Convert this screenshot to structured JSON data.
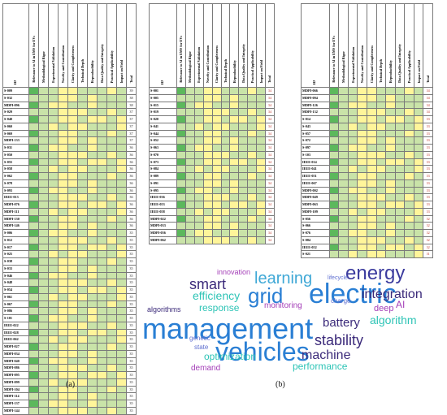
{
  "headers": [
    "Relevance to AI in EMS for EVs",
    "Methodological Rigor",
    "Experimental Validation",
    "Novelty and Contribution",
    "Clarity and Completeness",
    "Technical Depth",
    "Reproducibility",
    "Data Quality and Integrity",
    "Practical Applicability",
    "Impact on Field",
    "Total"
  ],
  "id_header": "ID",
  "table_a": {
    "ids": [
      "S-009",
      "S-032",
      "MDPI-096",
      "S-029",
      "S-040",
      "S-060",
      "S-069",
      "MDPI-133",
      "S-031",
      "S-050",
      "S-055",
      "S-058",
      "S-062",
      "S-078",
      "S-093",
      "IEEE-013",
      "MDPI-076",
      "MDPI-111",
      "MDPI-130",
      "MDPI-146",
      "S-006",
      "S-012",
      "S-017",
      "S-025",
      "S-038",
      "S-033",
      "S-046",
      "S-048",
      "S-054",
      "S-061",
      "S-067",
      "S-086",
      "S-101",
      "IEEE-022",
      "IEEE-028",
      "IEEE-062",
      "MDPI-027",
      "MDPI-034",
      "MDPI-040",
      "MDPI-086",
      "MDPI-095",
      "MDPI-099",
      "MDPI-104",
      "MDPI-114",
      "MDPI-137",
      "MDPI-144"
    ],
    "totals": [
      "39",
      "38",
      "38",
      "37",
      "37",
      "37",
      "37",
      "37",
      "36",
      "36",
      "36",
      "36",
      "36",
      "36",
      "36",
      "36",
      "36",
      "36",
      "36",
      "36",
      "35",
      "35",
      "35",
      "35",
      "35",
      "35",
      "35",
      "35",
      "35",
      "35",
      "35",
      "35",
      "35",
      "35",
      "35",
      "35",
      "35",
      "35",
      "35",
      "35",
      "35",
      "35",
      "35",
      "35",
      "35",
      "35"
    ]
  },
  "table_b": {
    "ids": [
      "S-001",
      "S-005",
      "S-015",
      "S-019",
      "S-020",
      "S-041",
      "S-044",
      "S-052",
      "S-063",
      "S-070",
      "S-073",
      "S-084",
      "S-089",
      "S-091",
      "S-095",
      "IEEE-036",
      "IEEE-053",
      "IEEE-058",
      "MDPI-022",
      "MDPI-033",
      "MDPI-056",
      "MDPI-062"
    ],
    "totals": [
      "34",
      "34",
      "34",
      "34",
      "34",
      "34",
      "34",
      "34",
      "34",
      "34",
      "34",
      "34",
      "34",
      "34",
      "34",
      "34",
      "34",
      "34",
      "34",
      "34",
      "34",
      "34"
    ]
  },
  "table_c": {
    "ids": [
      "MDPI-066",
      "MDPI-094",
      "MDPI-126",
      "MDPI-132",
      "S-014",
      "S-043",
      "S-057",
      "S-072",
      "S-097",
      "S-103",
      "IEEE-014",
      "IEEE-041",
      "IEEE-051",
      "IEEE-067",
      "MDPI-002",
      "MDPI-049",
      "MDPI-063",
      "MDPI-109",
      "S-056",
      "S-066",
      "S-076",
      "S-084",
      "IEEE-052",
      "S-021"
    ],
    "totals": [
      "34",
      "34",
      "34",
      "34",
      "33",
      "33",
      "33",
      "33",
      "33",
      "33",
      "33",
      "33",
      "33",
      "33",
      "33",
      "33",
      "33",
      "33",
      "32",
      "32",
      "32",
      "32",
      "32",
      "31"
    ]
  },
  "captions": {
    "a": "(a)",
    "b": "(b)"
  },
  "word_cloud": [
    {
      "text": "management",
      "color": "#2a7fd4"
    },
    {
      "text": "vehicles",
      "color": "#2a7fd4"
    },
    {
      "text": "electric",
      "color": "#2a7fd4"
    },
    {
      "text": "energy",
      "color": "#3b3b9e"
    },
    {
      "text": "grid",
      "color": "#2a7fd4"
    },
    {
      "text": "learning",
      "color": "#3fa8d6"
    },
    {
      "text": "smart",
      "color": "#3b2a7a"
    },
    {
      "text": "integration",
      "color": "#3b2a7a"
    },
    {
      "text": "battery",
      "color": "#3b2a7a"
    },
    {
      "text": "stability",
      "color": "#3b2a7a"
    },
    {
      "text": "machine",
      "color": "#3b2a7a"
    },
    {
      "text": "algorithm",
      "color": "#2ec4b6"
    },
    {
      "text": "efficiency",
      "color": "#2ec4b6"
    },
    {
      "text": "response",
      "color": "#2ec4b6"
    },
    {
      "text": "optimization",
      "color": "#2ec4b6"
    },
    {
      "text": "performance",
      "color": "#2ec4b6"
    },
    {
      "text": "deep",
      "color": "#a43fb8"
    },
    {
      "text": "AI",
      "color": "#a43fb8"
    },
    {
      "text": "monitoring",
      "color": "#a43fb8"
    },
    {
      "text": "innovation",
      "color": "#a43fb8"
    },
    {
      "text": "demand",
      "color": "#a43fb8"
    },
    {
      "text": "algorithms",
      "color": "#3b2a7a"
    },
    {
      "text": "genetic",
      "color": "#5f6fd0"
    },
    {
      "text": "state",
      "color": "#5f6fd0"
    },
    {
      "text": "charge",
      "color": "#5f6fd0"
    },
    {
      "text": "lifecycle",
      "color": "#5f6fd0"
    }
  ]
}
